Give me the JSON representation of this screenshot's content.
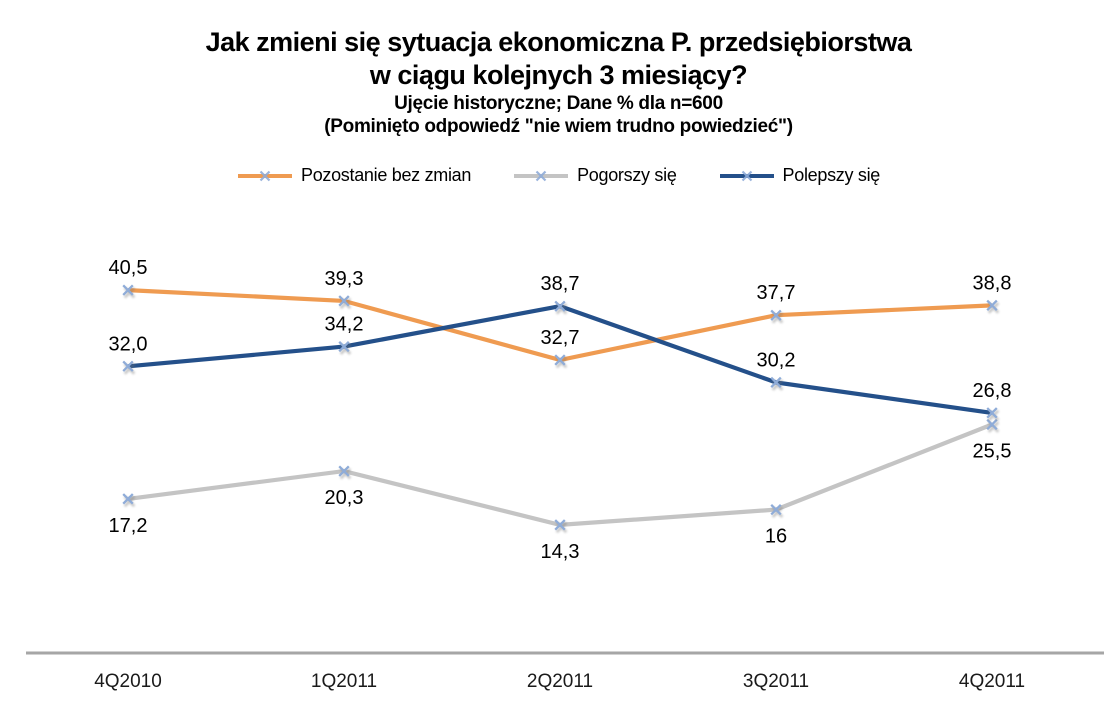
{
  "title": {
    "line1": "Jak zmieni się sytuacja ekonomiczna P. przedsiębiorstwa",
    "line2": "w ciągu kolejnych 3 miesiący?",
    "subtitle1": "Ujęcie historyczne; Dane % dla n=600",
    "subtitle2": "(Pominięto odpowiedź  \"nie wiem trudno powiedzieć\")"
  },
  "chart_data": {
    "type": "line",
    "title": "Jak zmieni się sytuacja ekonomiczna P. przedsiębiorstwa w ciągu kolejnych 3 miesiący?",
    "subtitle": "Ujęcie historyczne; Dane % dla n=600 (Pominięto odpowiedź \"nie wiem trudno powiedzieć\")",
    "categories": [
      "4Q2010",
      "1Q2011",
      "2Q2011",
      "3Q2011",
      "4Q2011"
    ],
    "series": [
      {
        "name": "Pozostanie bez zmian",
        "color": "#EF9B51",
        "values": [
          40.5,
          39.3,
          32.7,
          37.7,
          38.8
        ],
        "labels": [
          "40,5",
          "39,3",
          "32,7",
          "37,7",
          "38,8"
        ],
        "label_position": "above"
      },
      {
        "name": "Pogorszy się",
        "color": "#C4C4C4",
        "values": [
          17.2,
          20.3,
          14.3,
          16,
          25.5
        ],
        "labels": [
          "17,2",
          "20,3",
          "14,3",
          "16",
          "25,5"
        ],
        "label_position": "below"
      },
      {
        "name": "Polepszy się",
        "color": "#24508A",
        "values": [
          32.0,
          34.2,
          38.7,
          30.2,
          26.8
        ],
        "labels": [
          "32,0",
          "34,2",
          "38,7",
          "30,2",
          "26,8"
        ],
        "label_position": "above"
      }
    ],
    "marker": {
      "shape": "x",
      "color": "#8FACD8"
    },
    "xlabel": "",
    "ylabel": "",
    "ylim": [
      0,
      45
    ],
    "grid": false,
    "legend_position": "top",
    "axis_color": "#A6A6A6",
    "label_color": "#000000",
    "tick_color": "#1A1A1A"
  }
}
